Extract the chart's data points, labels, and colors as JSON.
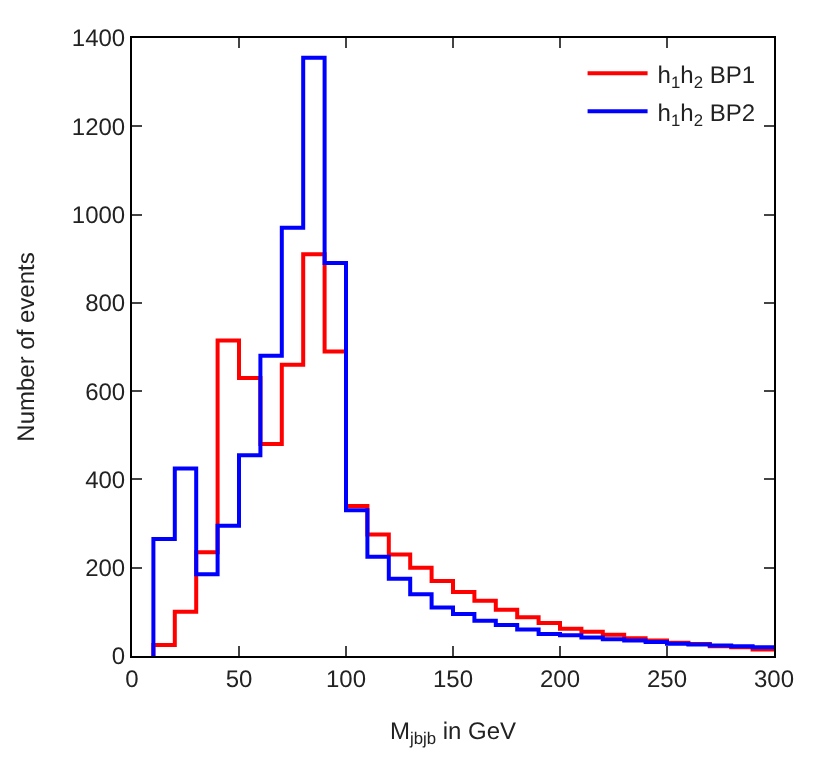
{
  "chart_data": {
    "type": "histogram",
    "xlabel": "M$_{jbjb}$ in GeV",
    "ylabel": "Number of events",
    "bins": [
      10,
      20,
      30,
      40,
      50,
      60,
      70,
      80,
      90,
      100,
      110,
      120,
      130,
      140,
      150,
      160,
      170,
      180,
      190,
      200,
      210,
      220,
      230,
      240,
      250,
      260,
      270,
      280,
      290,
      300
    ],
    "series": [
      {
        "name": "h$_{1}$h$_{2}$ BP1",
        "color": "#ff0000",
        "values": [
          25,
          100,
          235,
          715,
          630,
          480,
          660,
          910,
          690,
          340,
          275,
          230,
          200,
          170,
          145,
          125,
          105,
          88,
          75,
          62,
          55,
          48,
          40,
          35,
          30,
          27,
          22,
          20,
          15
        ]
      },
      {
        "name": "h$_{1}$h$_{2}$ BP2",
        "color": "#0000ff",
        "values": [
          265,
          425,
          185,
          295,
          455,
          680,
          970,
          1355,
          890,
          330,
          225,
          175,
          140,
          110,
          95,
          80,
          70,
          60,
          50,
          47,
          42,
          38,
          35,
          32,
          28,
          26,
          24,
          22,
          20
        ]
      }
    ],
    "xlim": [
      0,
      300
    ],
    "xticks": [
      0,
      50,
      100,
      150,
      200,
      250,
      300
    ],
    "ylim": [
      0,
      1400
    ],
    "yticks": [
      0,
      200,
      400,
      600,
      800,
      1000,
      1200,
      1400
    ],
    "legend": "top right"
  }
}
